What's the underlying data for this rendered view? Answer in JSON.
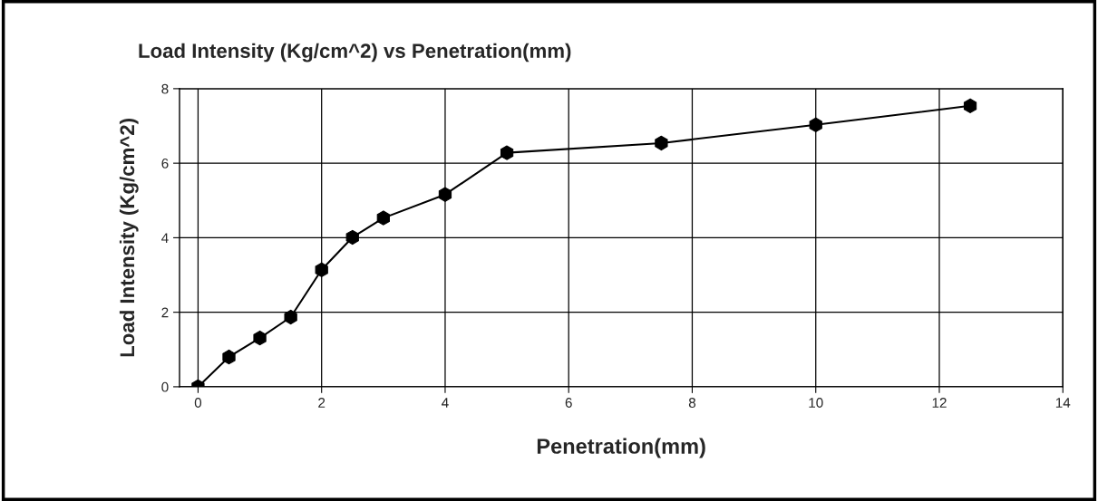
{
  "chart_data": {
    "type": "line",
    "title": "Load Intensity (Kg/cm^2) vs Penetration(mm)",
    "xlabel": "Penetration(mm)",
    "ylabel": "Load Intensity (Kg/cm^2)",
    "x": [
      0,
      0.5,
      1,
      1.5,
      2,
      2.5,
      3,
      4,
      5,
      7.5,
      10,
      12.5
    ],
    "series": [
      {
        "color": "#000000",
        "values": [
          0,
          0.8,
          1.31,
          1.87,
          3.14,
          4.01,
          4.53,
          5.16,
          6.28,
          6.54,
          7.03,
          7.54
        ]
      }
    ],
    "xlim": [
      -0.3,
      14
    ],
    "xticks": [
      0,
      2,
      4,
      6,
      8,
      10,
      12,
      14
    ],
    "ylim": [
      0,
      8
    ],
    "yticks": [
      0,
      2,
      4,
      6,
      8
    ],
    "grid": true,
    "marker": "circle",
    "line_style": "solid"
  }
}
